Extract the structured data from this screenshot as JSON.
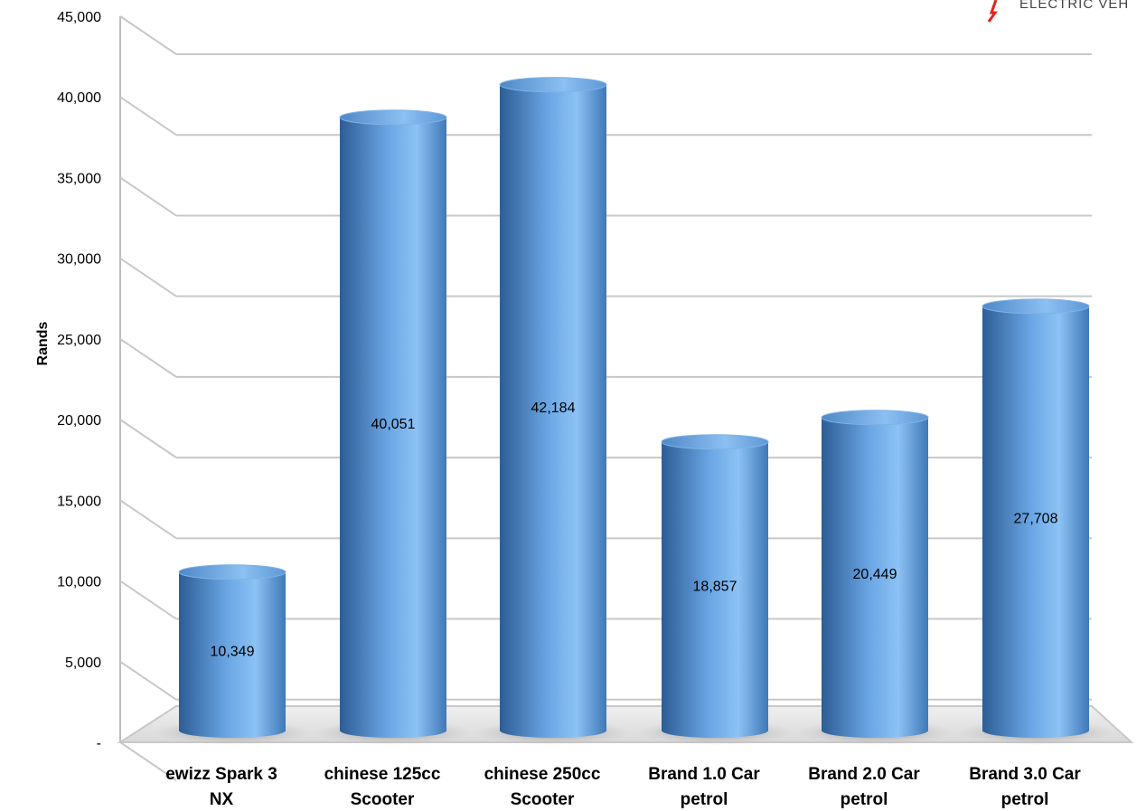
{
  "logo": {
    "text": "ELECTRIC VEH",
    "accent_color": "#e2231a"
  },
  "chart_data": {
    "type": "bar",
    "style": "3d-cylinder",
    "title": "",
    "xlabel": "",
    "ylabel": "Rands",
    "ylim": [
      0,
      45000
    ],
    "y_ticks": [
      0,
      5000,
      10000,
      15000,
      20000,
      25000,
      30000,
      35000,
      40000,
      45000
    ],
    "y_tick_labels": [
      "-",
      "5,000",
      "10,000",
      "15,000",
      "20,000",
      "25,000",
      "30,000",
      "35,000",
      "40,000",
      "45,000"
    ],
    "categories": [
      [
        "ewizz Spark 3",
        "NX"
      ],
      [
        "chinese 125cc",
        "Scooter"
      ],
      [
        "chinese 250cc",
        "Scooter"
      ],
      [
        "Brand 1.0 Car",
        "petrol"
      ],
      [
        "Brand 2.0 Car",
        "petrol"
      ],
      [
        "Brand 3.0 Car",
        "petrol"
      ]
    ],
    "values": [
      10349,
      40051,
      42184,
      18857,
      20449,
      27708
    ],
    "data_labels": [
      "10,349",
      "40,051",
      "42,184",
      "18,857",
      "20,449",
      "27,708"
    ],
    "grid": true,
    "legend": "none",
    "bar_color": "#5a95d5"
  }
}
